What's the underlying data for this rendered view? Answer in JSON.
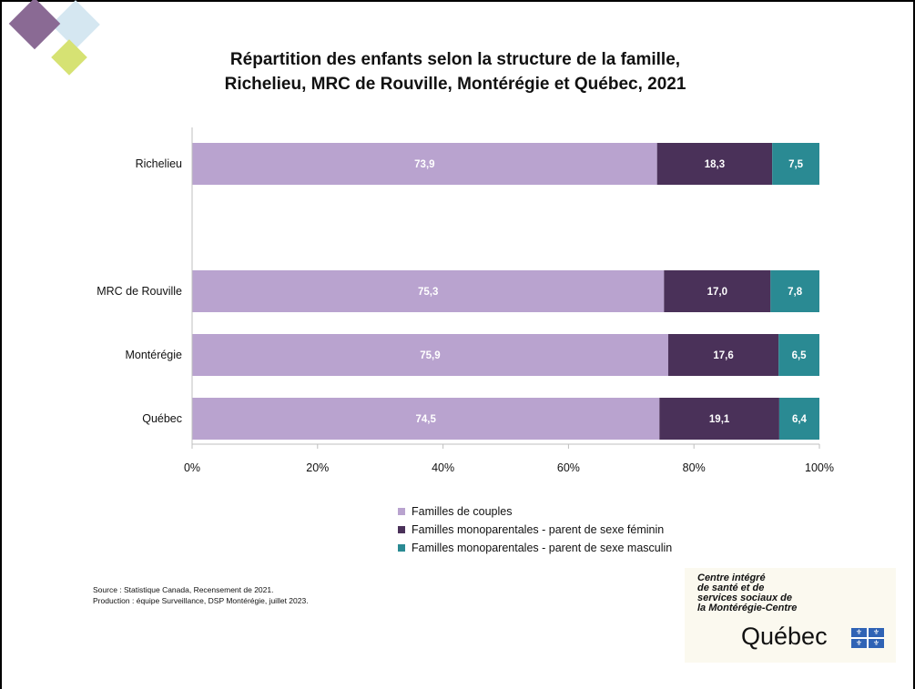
{
  "title_line1": "Répartition des enfants selon la structure de la famille,",
  "title_line2": "Richelieu, MRC de Rouville, Montérégie et Québec, 2021",
  "chart_data": {
    "type": "bar",
    "orientation": "horizontal",
    "stacked": true,
    "stacked_percent": true,
    "categories": [
      "Richelieu",
      "MRC de Rouville",
      "Montérégie",
      "Québec"
    ],
    "series": [
      {
        "name": "Familles de couples",
        "values": [
          73.9,
          75.3,
          75.9,
          74.5
        ],
        "labels": [
          "73,9",
          "75,3",
          "75,9",
          "74,5"
        ],
        "color": "#b9a3cf"
      },
      {
        "name": "Familles monoparentales - parent de sexe féminin",
        "values": [
          18.3,
          17.0,
          17.6,
          19.1
        ],
        "labels": [
          "18,3",
          "17,0",
          "17,6",
          "19,1"
        ],
        "color": "#4a3159"
      },
      {
        "name": "Familles monoparentales - parent de sexe masculin",
        "values": [
          7.5,
          7.8,
          6.5,
          6.4
        ],
        "labels": [
          "7,5",
          "7,8",
          "6,5",
          "6,4"
        ],
        "color": "#2a8a93"
      }
    ],
    "xlim": [
      0,
      100
    ],
    "x_ticks": [
      "0%",
      "20%",
      "40%",
      "60%",
      "80%",
      "100%"
    ],
    "x_tick_values": [
      0,
      20,
      40,
      60,
      80,
      100
    ],
    "grid": false,
    "legend_position": "bottom"
  },
  "source_line1": "Source : Statistique Canada, Recensement de 2021.",
  "source_line2": "Production : équipe Surveillance, DSP Montérégie, juillet 2023.",
  "logo": {
    "line1": "Centre intégré",
    "line2": "de santé et de",
    "line3": "services sociaux de",
    "line4": "la Montérégie-Centre",
    "wordmark": "Québec"
  },
  "colors": {
    "deco_purple": "#8a6a94",
    "deco_blue": "#d5e7f1",
    "deco_green": "#d6e273"
  }
}
